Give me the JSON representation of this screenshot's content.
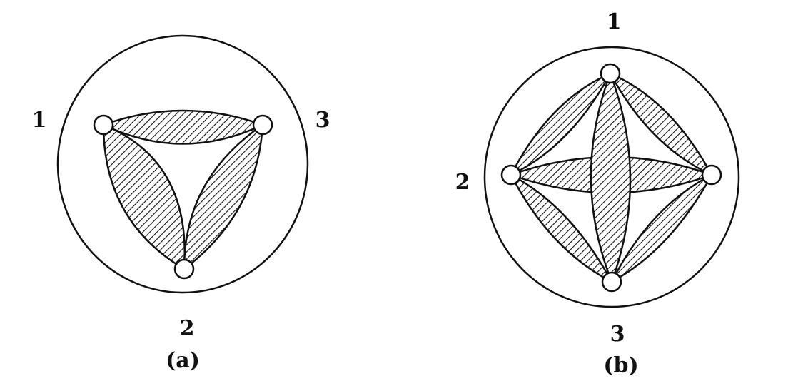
{
  "diagram_a": {
    "caption": "(a)",
    "labels": {
      "top_left": "1",
      "top_right": "3",
      "bottom": "2"
    }
  },
  "diagram_b": {
    "caption": "(b)",
    "labels": {
      "top": "1",
      "left": "2",
      "bottom": "3"
    }
  },
  "colors": {
    "stroke": "#111111",
    "background": "#ffffff",
    "node_fill": "#ffffff"
  }
}
